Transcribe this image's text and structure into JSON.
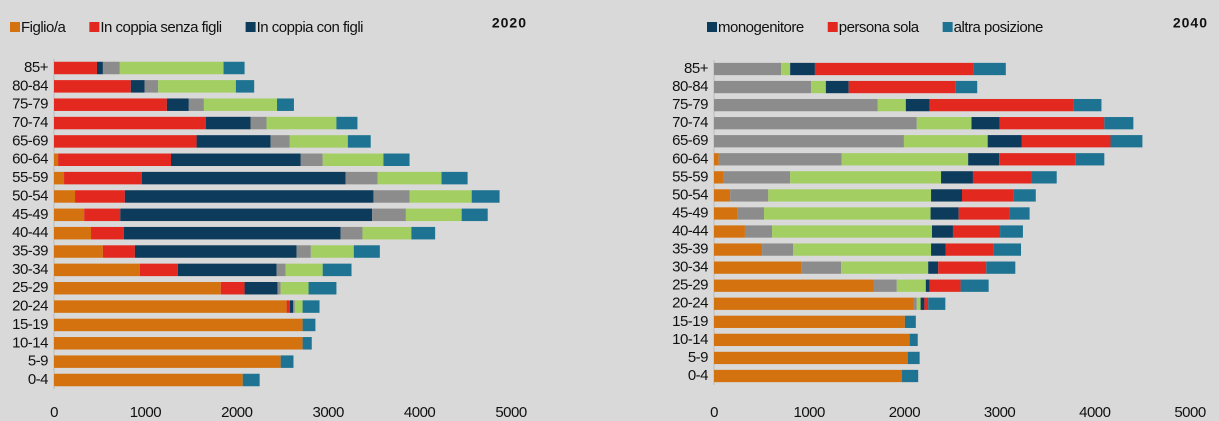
{
  "chart_data": [
    {
      "type": "bar",
      "orientation": "horizontal",
      "stacked": true,
      "title": "2020",
      "categories": [
        "85+",
        "80-84",
        "75-79",
        "70-74",
        "65-69",
        "60-64",
        "55-59",
        "50-54",
        "45-49",
        "40-44",
        "35-39",
        "30-34",
        "25-29",
        "20-24",
        "15-19",
        "10-14",
        "5-9",
        "0-4"
      ],
      "series": [
        {
          "name": "Figlio/a",
          "color": "#d4720f",
          "values": [
            0,
            0,
            0,
            0,
            0,
            45,
            110,
            230,
            330,
            405,
            535,
            940,
            1825,
            2545,
            2720,
            2720,
            2480,
            2065
          ]
        },
        {
          "name": "In coppia senza figli",
          "color": "#e3291f",
          "values": [
            470,
            840,
            1235,
            1660,
            1560,
            1235,
            850,
            545,
            395,
            360,
            350,
            415,
            260,
            35,
            0,
            0,
            0,
            0
          ]
        },
        {
          "name": "In coppia con figli",
          "color": "#0d3b5c",
          "values": [
            65,
            150,
            240,
            490,
            810,
            1420,
            2230,
            2720,
            2755,
            2370,
            1770,
            1080,
            360,
            35,
            0,
            0,
            0,
            0
          ]
        },
        {
          "color": "#8c8c8c",
          "values": [
            185,
            150,
            165,
            175,
            210,
            240,
            350,
            395,
            370,
            240,
            155,
            100,
            35,
            20,
            0,
            0,
            0,
            0
          ]
        },
        {
          "color": "#a3cf62",
          "values": [
            1135,
            850,
            800,
            765,
            635,
            665,
            700,
            680,
            610,
            535,
            470,
            405,
            305,
            85,
            0,
            0,
            0,
            0
          ]
        },
        {
          "color": "#1d7391",
          "values": [
            230,
            200,
            185,
            230,
            250,
            285,
            285,
            305,
            285,
            260,
            285,
            315,
            305,
            185,
            140,
            100,
            140,
            185
          ]
        }
      ],
      "xlim": [
        0,
        5000
      ],
      "xticks": [
        0,
        1000,
        2000,
        3000,
        4000,
        5000
      ]
    },
    {
      "type": "bar",
      "orientation": "horizontal",
      "stacked": true,
      "title": "2040",
      "categories": [
        "85+",
        "80-84",
        "75-79",
        "70-74",
        "65-69",
        "60-64",
        "55-59",
        "50-54",
        "45-49",
        "40-44",
        "35-39",
        "30-34",
        "25-29",
        "20-24",
        "15-19",
        "10-14",
        "5-9",
        "0-4"
      ],
      "series": [
        {
          "color": "#d4720f",
          "values": [
            0,
            0,
            0,
            0,
            0,
            50,
            95,
            170,
            250,
            325,
            505,
            915,
            1680,
            2100,
            2005,
            2055,
            2035,
            1975
          ]
        },
        {
          "color": "#8c8c8c",
          "values": [
            705,
            1020,
            1720,
            2130,
            1995,
            1290,
            705,
            400,
            275,
            285,
            325,
            420,
            240,
            30,
            0,
            0,
            0,
            0
          ]
        },
        {
          "color": "#a3cf62",
          "values": [
            95,
            155,
            295,
            575,
            880,
            1330,
            1585,
            1710,
            1750,
            1680,
            1450,
            915,
            305,
            40,
            0,
            0,
            0,
            0
          ]
        },
        {
          "name": "monogenitore",
          "color": "#0d3b5c",
          "values": [
            260,
            240,
            250,
            295,
            355,
            325,
            335,
            325,
            295,
            220,
            155,
            105,
            40,
            40,
            0,
            0,
            0,
            0
          ]
        },
        {
          "name": "persona sola",
          "color": "#e3291f",
          "values": [
            1670,
            1120,
            1510,
            1100,
            935,
            800,
            620,
            545,
            535,
            495,
            505,
            505,
            325,
            40,
            0,
            0,
            0,
            0
          ]
        },
        {
          "name": "altra posizione",
          "color": "#1d7391",
          "values": [
            335,
            230,
            295,
            305,
            335,
            305,
            260,
            230,
            210,
            240,
            285,
            305,
            295,
            180,
            115,
            85,
            125,
            170
          ]
        }
      ],
      "xlim": [
        0,
        5000
      ],
      "xticks": [
        0,
        1000,
        2000,
        3000,
        4000,
        5000
      ]
    }
  ]
}
